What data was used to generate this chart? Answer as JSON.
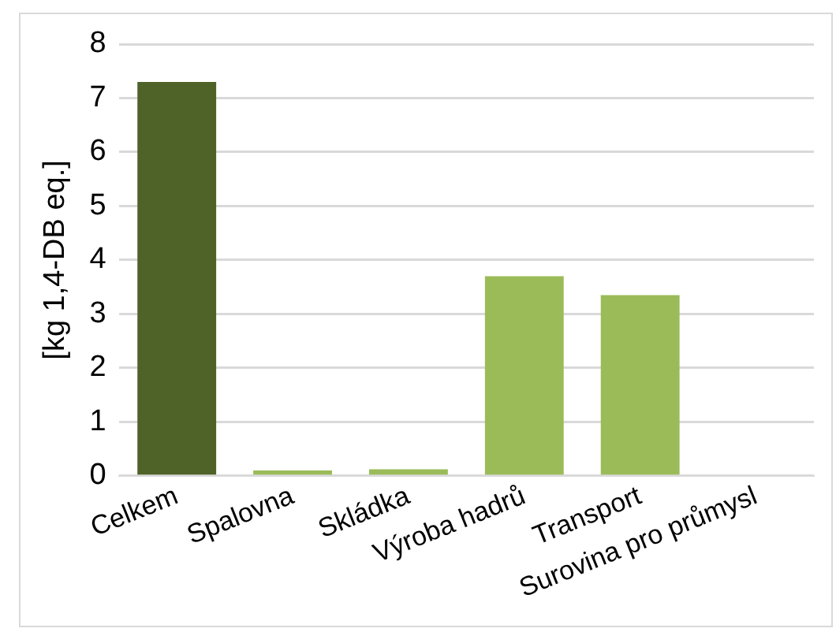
{
  "chart_data": {
    "type": "bar",
    "ylabel": "[kg 1,4-DB eq.]",
    "categories": [
      "Celkem",
      "Spalovna",
      "Skládka",
      "Výroba hadrů",
      "Transport",
      "Surovina pro průmysl"
    ],
    "values": [
      7.3,
      0.1,
      0.12,
      3.7,
      3.35,
      0
    ],
    "colors": [
      "#4f6228",
      "#9bbb59",
      "#9bbb59",
      "#9bbb59",
      "#9bbb59",
      "#9bbb59"
    ],
    "ylim": [
      0,
      8
    ],
    "yticks": [
      0,
      1,
      2,
      3,
      4,
      5,
      6,
      7,
      8
    ],
    "grid": "y",
    "legend": false
  }
}
